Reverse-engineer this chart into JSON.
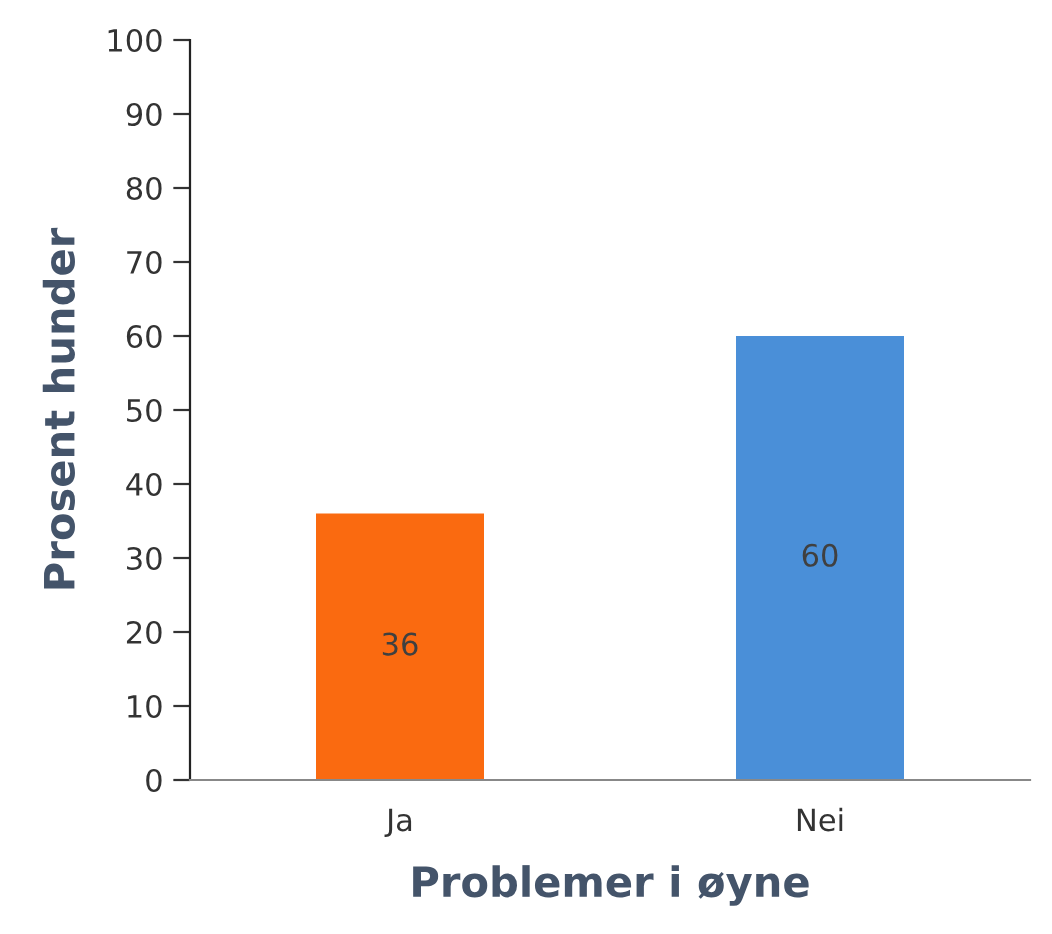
{
  "chart_data": {
    "type": "bar",
    "xlabel": "Problemer i øyne",
    "ylabel": "Prosent hunder",
    "categories": [
      "Ja",
      "Nei"
    ],
    "values": [
      36,
      60
    ],
    "colors": [
      "#fa6a10",
      "#4a8fd8"
    ],
    "ylim": [
      0,
      100
    ],
    "yticks": [
      0,
      10,
      20,
      30,
      40,
      50,
      60,
      70,
      80,
      90,
      100
    ],
    "data_labels": true,
    "grid": false,
    "legend": false
  }
}
